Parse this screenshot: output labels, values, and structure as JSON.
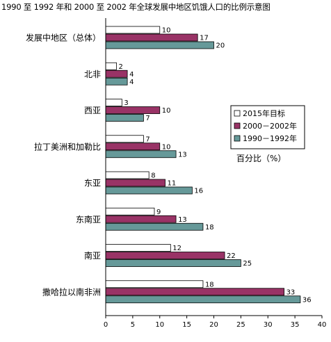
{
  "chart_data": {
    "type": "bar",
    "orientation": "horizontal",
    "title": "1990 至 1992 年和 2000 至 2002 年全球发展中地区饥饿人口的比例示意图",
    "categories": [
      "发展中地区（总体）",
      "北非",
      "西亚",
      "拉丁美洲和加勒比",
      "东亚",
      "东南亚",
      "南亚",
      "撒哈拉以南非洲"
    ],
    "series": [
      {
        "name": "2015年目标",
        "color": "#ffffff",
        "values": [
          10,
          2,
          3,
          7,
          8,
          9,
          12,
          18
        ]
      },
      {
        "name": "2000－2002年",
        "color": "#993366",
        "values": [
          17,
          4,
          10,
          10,
          11,
          13,
          22,
          33
        ]
      },
      {
        "name": "1990－1992年",
        "color": "#669999",
        "values": [
          20,
          4,
          7,
          13,
          16,
          18,
          25,
          36
        ]
      }
    ],
    "xlim": [
      0,
      40
    ],
    "xticks": [
      0,
      5,
      10,
      15,
      20,
      25,
      30,
      35,
      40
    ],
    "axis_title": "百分比（%）",
    "legend_position": "right",
    "grid": false
  }
}
